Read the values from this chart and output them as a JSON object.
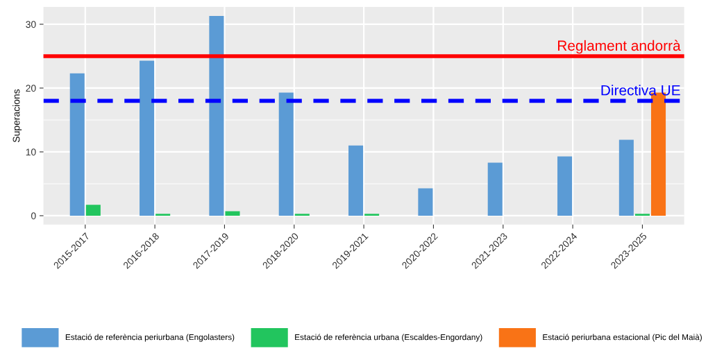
{
  "chart_data": {
    "type": "bar",
    "ylabel": "Superacions",
    "categories": [
      "2015-2017",
      "2016-2018",
      "2017-2019",
      "2018-2020",
      "2019-2021",
      "2020-2022",
      "2021-2023",
      "2022-2024",
      "2023-2025"
    ],
    "series": [
      {
        "name": "Estació de referència periurbana (Engolasters)",
        "color": "#5b9bd5",
        "values": [
          22.3,
          24.3,
          31.3,
          19.3,
          11.0,
          4.3,
          8.3,
          9.3,
          11.9
        ]
      },
      {
        "name": "Estació de referència urbana (Escaldes-Engordany)",
        "color": "#22c55e",
        "values": [
          1.7,
          0.3,
          0.7,
          0.3,
          0.3,
          null,
          null,
          null,
          0.3
        ]
      },
      {
        "name": "Estació periurbana estacional (Pic del Maià)",
        "color": "#f97316",
        "values": [
          null,
          null,
          null,
          null,
          null,
          null,
          null,
          null,
          19.3
        ]
      }
    ],
    "ylim": [
      -1.4,
      32.7
    ],
    "yticks": [
      0,
      {
        "value": 5,
        "label": null
      },
      10,
      {
        "value": 15,
        "label": null
      },
      20,
      {
        "value": 25,
        "label": null
      },
      30
    ],
    "grid": true,
    "legend": "bottom",
    "ref_lines": [
      {
        "axis": "y",
        "value": 25,
        "label": "Reglament andorrà",
        "color": "#ff0000",
        "line_style": "solid"
      },
      {
        "axis": "y",
        "value": 18,
        "label": "Directiva UE",
        "color": "#0000ff",
        "line_style": "dashed"
      }
    ]
  }
}
